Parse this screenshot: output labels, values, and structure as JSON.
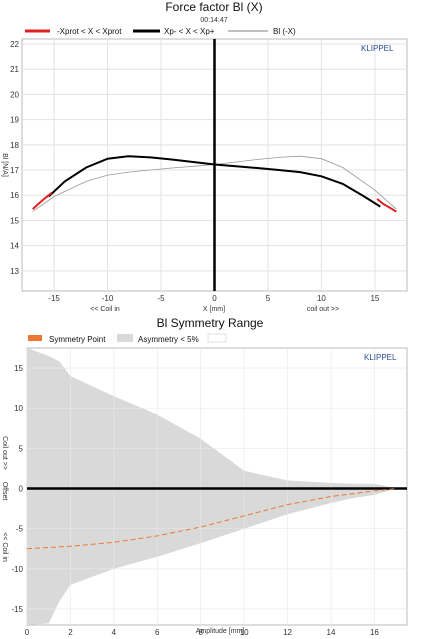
{
  "chart_data": [
    {
      "type": "line",
      "title": "Force factor Bl (X)",
      "subtitle": "00:14:47",
      "brand": "KLIPPEL",
      "xlabel": "X [mm]",
      "ylabel": "Bl [N/A]",
      "x_annotation_left": "<< Coil in",
      "x_annotation_right": "coil out >>",
      "xlim": [
        -18,
        18
      ],
      "ylim": [
        12.2,
        22.2
      ],
      "xticks": [
        -15,
        -10,
        -5,
        0,
        5,
        10,
        15
      ],
      "yticks": [
        13,
        14,
        15,
        16,
        17,
        18,
        19,
        20,
        21,
        22
      ],
      "grid": true,
      "legend": [
        {
          "label": "-Xprot < X < Xprot",
          "color": "#e02020"
        },
        {
          "label": "Xp- < X < Xp+",
          "color": "#000000"
        },
        {
          "label": "Bl (-X)",
          "color": "#999999"
        }
      ],
      "series": [
        {
          "name": "Xp- < X < Xp+",
          "color": "#000000",
          "x": [
            -15.5,
            -14,
            -12,
            -10,
            -8,
            -6,
            -4,
            -2,
            0,
            2,
            4,
            6,
            8,
            10,
            12,
            14,
            15.5
          ],
          "y": [
            15.95,
            16.55,
            17.1,
            17.45,
            17.55,
            17.5,
            17.42,
            17.32,
            17.22,
            17.15,
            17.08,
            17.0,
            16.92,
            16.75,
            16.45,
            15.95,
            15.55
          ]
        },
        {
          "name": "-Xprot < X < Xprot",
          "color": "#e02020",
          "x_left": [
            -17,
            -16.4,
            -15.8,
            -15.2
          ],
          "y_left": [
            15.45,
            15.68,
            15.9,
            16.1
          ],
          "x_right": [
            15.2,
            15.8,
            16.4,
            17
          ],
          "y_right": [
            15.85,
            15.65,
            15.5,
            15.35
          ]
        },
        {
          "name": "Bl (-X)",
          "color": "#999999",
          "x": [
            -17,
            -15,
            -12,
            -10,
            -8,
            -6,
            -4,
            -2,
            0,
            2,
            4,
            6,
            8,
            10,
            12,
            15,
            17
          ],
          "y": [
            15.35,
            15.95,
            16.55,
            16.8,
            16.92,
            17.0,
            17.08,
            17.15,
            17.22,
            17.32,
            17.42,
            17.5,
            17.55,
            17.45,
            17.1,
            16.2,
            15.45
          ]
        }
      ],
      "center_line_x": 0
    },
    {
      "type": "area",
      "title": "Bl Symmetry Range",
      "brand": "KLIPPEL",
      "xlabel": "Amplitude [mm]",
      "ylabel_top": "Coil out >>",
      "ylabel_mid": "Offset",
      "ylabel_bottom": "<< Coil in",
      "xlim": [
        0,
        17.5
      ],
      "ylim": [
        -17,
        17.5
      ],
      "xticks": [
        0,
        2,
        4,
        6,
        8,
        10,
        12,
        14,
        16
      ],
      "yticks": [
        -15,
        -10,
        -5,
        0,
        5,
        10,
        15
      ],
      "grid": true,
      "legend": [
        {
          "label": "Symmetry Point",
          "color": "#ee7733"
        },
        {
          "label": "Asymmetry < 5%",
          "color": "#d9d9d9"
        }
      ],
      "asymmetry_band": {
        "x": [
          0,
          1,
          1.5,
          2,
          4,
          6,
          8,
          10,
          12,
          14,
          15,
          16,
          17
        ],
        "upper": [
          17.5,
          16.5,
          15.8,
          14,
          11.5,
          9.2,
          6.2,
          2.2,
          1.0,
          0.7,
          0.6,
          0.6,
          0
        ],
        "lower": [
          -17,
          -16.8,
          -14,
          -12,
          -10,
          -8.5,
          -6.8,
          -5.0,
          -3.2,
          -1.8,
          -1.2,
          -0.8,
          0
        ]
      },
      "symmetry_point": {
        "x": [
          0,
          2,
          4,
          6,
          8,
          10,
          12,
          14,
          16,
          17
        ],
        "y": [
          -7.5,
          -7.2,
          -6.7,
          -5.9,
          -4.8,
          -3.4,
          -2.0,
          -1.0,
          -0.3,
          0
        ]
      },
      "zero_line_y": 0
    }
  ]
}
